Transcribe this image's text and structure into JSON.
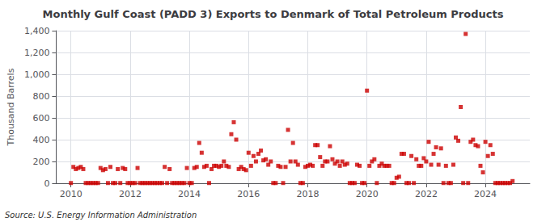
{
  "chart_data": {
    "type": "scatter",
    "title": "Monthly Gulf Coast (PADD 3) Exports to Denmark of Total Petroleum Products",
    "ylabel": "Thousand Barrels",
    "annotation": "Source: U.S. Energy Information Administration",
    "color": "#cc0000",
    "marker": "square",
    "grid": true,
    "xlim": [
      2009.5,
      2025.5
    ],
    "xticks": [
      2010,
      2012,
      2014,
      2016,
      2018,
      2020,
      2022,
      2024
    ],
    "ylim": [
      0,
      1400
    ],
    "yticks": [
      0,
      200,
      400,
      600,
      800,
      {
        "value": 1000,
        "label": "1,000"
      },
      {
        "value": 1200,
        "label": "1,200"
      },
      {
        "value": 1400,
        "label": "1,400"
      }
    ],
    "x": [
      2010.0,
      2010.083,
      2010.167,
      2010.25,
      2010.333,
      2010.417,
      2010.5,
      2010.583,
      2010.667,
      2010.75,
      2010.833,
      2010.917,
      2011.0,
      2011.083,
      2011.167,
      2011.25,
      2011.333,
      2011.417,
      2011.5,
      2011.583,
      2011.667,
      2011.75,
      2011.833,
      2011.917,
      2012.0,
      2012.083,
      2012.167,
      2012.25,
      2012.333,
      2012.417,
      2012.5,
      2012.583,
      2012.667,
      2012.75,
      2012.833,
      2012.917,
      2013.0,
      2013.083,
      2013.167,
      2013.25,
      2013.333,
      2013.417,
      2013.5,
      2013.583,
      2013.667,
      2013.75,
      2013.833,
      2013.917,
      2014.0,
      2014.083,
      2014.167,
      2014.25,
      2014.333,
      2014.417,
      2014.5,
      2014.583,
      2014.667,
      2014.75,
      2014.833,
      2014.917,
      2015.0,
      2015.083,
      2015.167,
      2015.25,
      2015.333,
      2015.417,
      2015.5,
      2015.583,
      2015.667,
      2015.75,
      2015.833,
      2015.917,
      2016.0,
      2016.083,
      2016.167,
      2016.25,
      2016.333,
      2016.417,
      2016.5,
      2016.583,
      2016.667,
      2016.75,
      2016.833,
      2016.917,
      2017.0,
      2017.083,
      2017.167,
      2017.25,
      2017.333,
      2017.417,
      2017.5,
      2017.583,
      2017.667,
      2017.75,
      2017.833,
      2017.917,
      2018.0,
      2018.083,
      2018.167,
      2018.25,
      2018.333,
      2018.417,
      2018.5,
      2018.583,
      2018.667,
      2018.75,
      2018.833,
      2018.917,
      2019.0,
      2019.083,
      2019.167,
      2019.25,
      2019.333,
      2019.417,
      2019.5,
      2019.583,
      2019.667,
      2019.75,
      2019.833,
      2019.917,
      2020.0,
      2020.083,
      2020.167,
      2020.25,
      2020.333,
      2020.417,
      2020.5,
      2020.583,
      2020.667,
      2020.75,
      2020.833,
      2020.917,
      2021.0,
      2021.083,
      2021.167,
      2021.25,
      2021.333,
      2021.417,
      2021.5,
      2021.583,
      2021.667,
      2021.75,
      2021.833,
      2021.917,
      2022.0,
      2022.083,
      2022.167,
      2022.25,
      2022.333,
      2022.417,
      2022.5,
      2022.583,
      2022.667,
      2022.75,
      2022.833,
      2022.917,
      2023.0,
      2023.083,
      2023.167,
      2023.25,
      2023.333,
      2023.417,
      2023.5,
      2023.583,
      2023.667,
      2023.75,
      2023.833,
      2023.917,
      2024.0,
      2024.083,
      2024.167,
      2024.25,
      2024.333,
      2024.417,
      2024.5,
      2024.583,
      2024.667,
      2024.75,
      2024.833,
      2024.917
    ],
    "values": [
      2,
      150,
      130,
      140,
      150,
      130,
      2,
      2,
      2,
      2,
      2,
      2,
      140,
      120,
      130,
      2,
      150,
      2,
      2,
      130,
      2,
      140,
      130,
      2,
      2,
      2,
      2,
      140,
      2,
      2,
      2,
      2,
      2,
      2,
      2,
      2,
      2,
      2,
      150,
      2,
      130,
      2,
      2,
      2,
      2,
      2,
      2,
      140,
      2,
      2,
      140,
      150,
      370,
      280,
      150,
      160,
      2,
      130,
      160,
      160,
      150,
      160,
      200,
      160,
      150,
      450,
      560,
      400,
      130,
      150,
      130,
      120,
      280,
      160,
      250,
      200,
      270,
      300,
      210,
      220,
      170,
      200,
      2,
      2,
      160,
      150,
      2,
      150,
      490,
      200,
      370,
      200,
      170,
      2,
      2,
      150,
      160,
      170,
      160,
      350,
      350,
      240,
      160,
      200,
      200,
      340,
      220,
      180,
      200,
      160,
      200,
      170,
      180,
      2,
      2,
      2,
      170,
      160,
      2,
      2,
      850,
      160,
      200,
      220,
      2,
      160,
      180,
      160,
      160,
      160,
      2,
      2,
      50,
      60,
      270,
      270,
      2,
      2,
      250,
      2,
      220,
      160,
      160,
      230,
      200,
      380,
      170,
      270,
      330,
      170,
      320,
      2,
      160,
      2,
      2,
      170,
      420,
      390,
      700,
      2,
      1370,
      2,
      380,
      400,
      350,
      340,
      160,
      100,
      380,
      250,
      350,
      270,
      2,
      2,
      2,
      2,
      2,
      2,
      2,
      20
    ]
  }
}
